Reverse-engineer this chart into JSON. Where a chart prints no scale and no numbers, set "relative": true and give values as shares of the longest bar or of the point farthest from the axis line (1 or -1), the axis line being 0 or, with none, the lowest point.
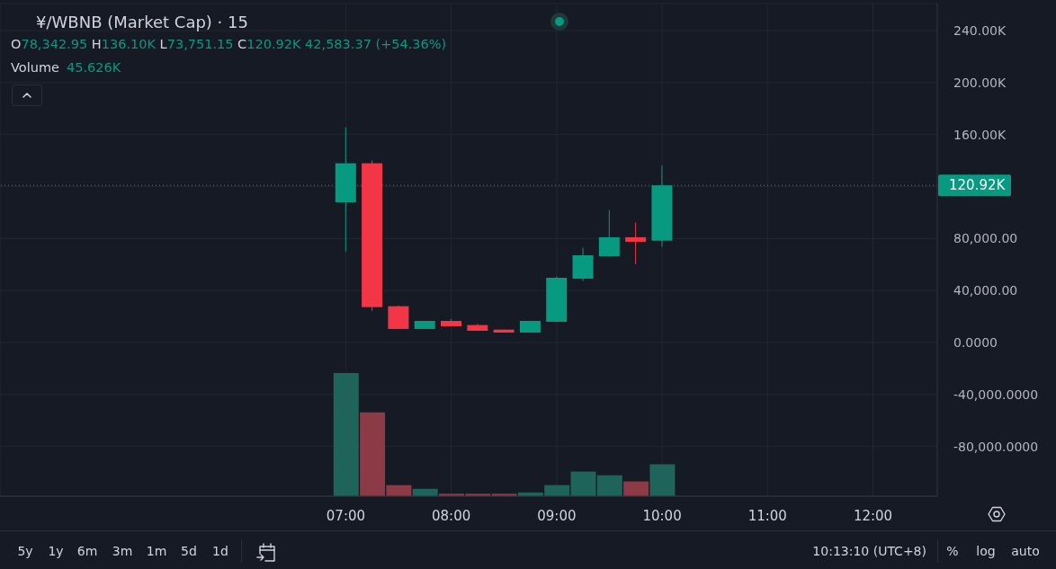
{
  "chart_data": [
    {
      "type": "candlestick",
      "title": "¥/WBNB (Market Cap) · 15",
      "subtitle": "O78,342.95 H136.10K L73,751.15 C120.92K 42,583.37 (+54.36%)",
      "x": [
        7,
        7.25,
        7.5,
        7.75,
        8,
        8.25,
        8.5,
        8.75,
        9,
        9.25,
        9.5,
        9.75,
        10
      ],
      "ohlc": [
        [
          107900,
          165600,
          69900,
          137900
        ],
        [
          137900,
          140200,
          24400,
          27200
        ],
        [
          27900,
          28400,
          10400,
          10400
        ],
        [
          10400,
          16600,
          10400,
          16600
        ],
        [
          16600,
          18000,
          12500,
          12500
        ],
        [
          13400,
          14300,
          9000,
          9000
        ],
        [
          9900,
          9900,
          7600,
          7600
        ],
        [
          7600,
          16600,
          7600,
          16600
        ],
        [
          15900,
          50700,
          15900,
          49800
        ],
        [
          49100,
          72900,
          47300,
          67100
        ],
        [
          66400,
          101900,
          65900,
          81000
        ],
        [
          81000,
          92200,
          60200,
          77500
        ],
        [
          78342.95,
          136100,
          73751.15,
          120920
        ]
      ],
      "colors": [
        "#089981",
        "#f23645",
        "#f23645",
        "#089981",
        "#f23645",
        "#f23645",
        "#f23645",
        "#089981",
        "#089981",
        "#089981",
        "#089981",
        "#f23645",
        "#089981"
      ],
      "xlim": [
        3.72,
        12.61
      ],
      "xticks": [
        {
          "value": 7,
          "label": "07:00"
        },
        {
          "value": 8,
          "label": "08:00"
        },
        {
          "value": 9,
          "label": "09:00"
        },
        {
          "value": 10,
          "label": "10:00"
        },
        {
          "value": 11,
          "label": "11:00"
        },
        {
          "value": 12,
          "label": "12:00"
        }
      ],
      "ylim": [
        -118300,
        260800
      ],
      "yticks": [
        {
          "value": -80000,
          "label": "-80,000.0000"
        },
        {
          "value": -40000,
          "label": "-40,000.0000"
        },
        {
          "value": 0,
          "label": "0.0000"
        },
        {
          "value": 40000,
          "label": "40,000.00"
        },
        {
          "value": 80000,
          "label": "80,000.00"
        },
        {
          "value": 120000,
          "label": null
        },
        {
          "value": 160000,
          "label": "160.00K"
        },
        {
          "value": 200000,
          "label": "200.00K"
        },
        {
          "value": 240000,
          "label": "240.00K"
        }
      ],
      "grid": true,
      "ref_lines": [
        {
          "axis": "y",
          "value": 120920,
          "label": "120.92K",
          "color": "#089981",
          "line_style": "dotted"
        }
      ],
      "annotations": [
        "5y",
        "1y",
        "6m",
        "3m",
        "1m",
        "5d",
        "1d",
        "10:13:10 (UTC+8)",
        "%",
        "log",
        "auto"
      ]
    },
    {
      "type": "bar",
      "title": "Volume",
      "annotations": [
        "45.626K"
      ],
      "relative": true,
      "tick_labels": false,
      "x": [
        7,
        7.25,
        7.5,
        7.75,
        8,
        8.25,
        8.5,
        8.75,
        9,
        9.25,
        9.5,
        9.75,
        10
      ],
      "xlim": [
        3.72,
        12.61
      ],
      "values": [
        1,
        0.68,
        0.09,
        0.06,
        0.02,
        0.02,
        0.02,
        0.03,
        0.09,
        0.2,
        0.17,
        0.12,
        0.26
      ],
      "colors": [
        "#1e645a",
        "#8b3a46",
        "#8b3a46",
        "#1e645a",
        "#8b3a46",
        "#8b3a46",
        "#8b3a46",
        "#1e645a",
        "#1e645a",
        "#1e645a",
        "#1e645a",
        "#8b3a46",
        "#1e645a"
      ]
    }
  ]
}
